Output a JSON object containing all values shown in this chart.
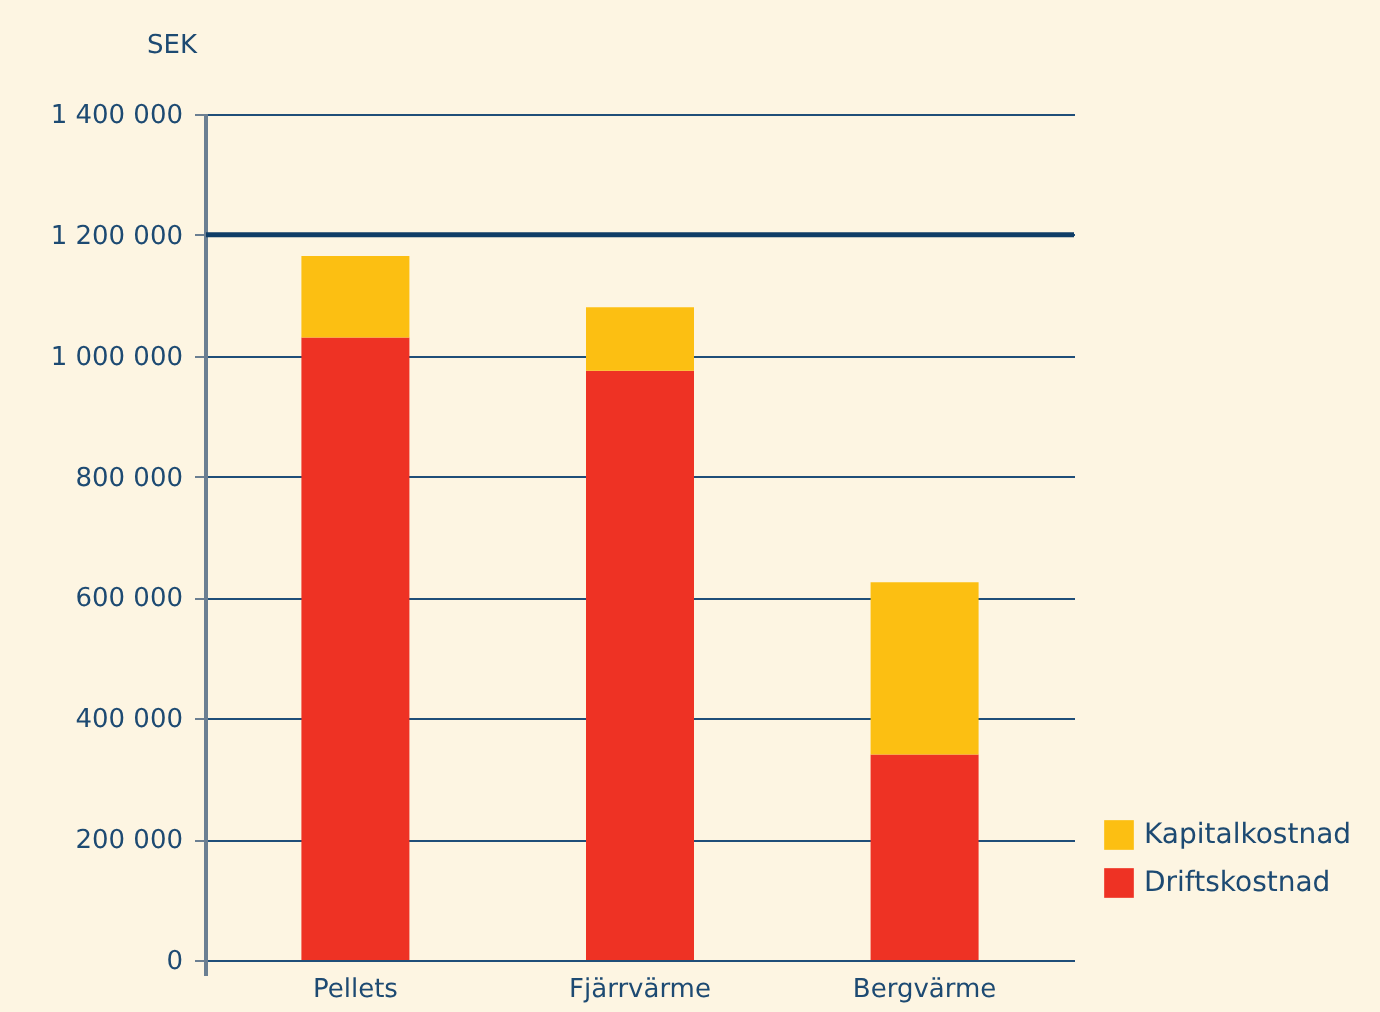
{
  "chart_data": {
    "type": "bar",
    "ylabel": "SEK",
    "categories": [
      "Pellets",
      "Fjärrvärme",
      "Bergvärme"
    ],
    "stacked": true,
    "series": [
      {
        "name": "Driftskostnad",
        "color": "#ee3224",
        "values": [
          1030000,
          975000,
          340000
        ]
      },
      {
        "name": "Kapitalkostnad",
        "color": "#fcbf12",
        "values": [
          135000,
          105000,
          285000
        ]
      }
    ],
    "ylim": [
      0,
      1400000
    ],
    "yticks": [
      {
        "value": 0,
        "label": "0"
      },
      {
        "value": 200000,
        "label": "200 000"
      },
      {
        "value": 400000,
        "label": "400 000"
      },
      {
        "value": 600000,
        "label": "600 000"
      },
      {
        "value": 800000,
        "label": "800 000"
      },
      {
        "value": 1000000,
        "label": "1 000 000"
      },
      {
        "value": 1200000,
        "label": "1 200 000"
      },
      {
        "value": 1400000,
        "label": "1 400 000"
      }
    ],
    "ref_lines": [
      {
        "axis": "y",
        "value": 1200000,
        "color": "#0f3d66"
      }
    ],
    "grid": "y",
    "legend": "bottom right"
  }
}
